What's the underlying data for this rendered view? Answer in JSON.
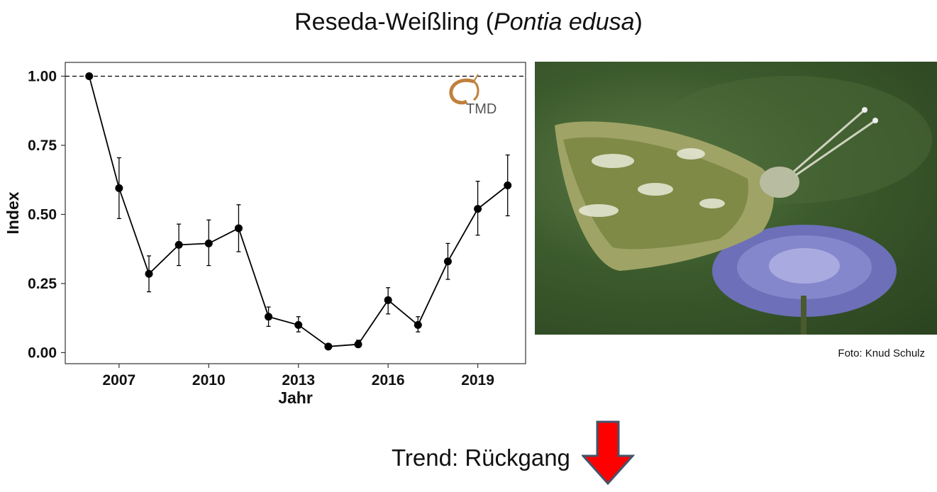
{
  "title": {
    "main": "Reseda-Weißling (",
    "italic": "Pontia edusa",
    "close": ")"
  },
  "logo": {
    "text": "TMD",
    "icon": "butterfly-logo-icon"
  },
  "photo": {
    "credit": "Foto: Knud Schulz",
    "icon": "butterfly-on-flower-image"
  },
  "trend": {
    "label": "Trend: Rückgang",
    "arrow_icon": "down-arrow-icon",
    "arrow_color": "#ff0000",
    "arrow_stroke": "#44546a"
  },
  "chart_data": {
    "type": "line",
    "xlabel": "Jahr",
    "ylabel": "Index",
    "x": [
      2006,
      2007,
      2008,
      2009,
      2010,
      2011,
      2012,
      2013,
      2014,
      2015,
      2016,
      2017,
      2018,
      2019,
      2020
    ],
    "series": [
      {
        "values": [
          1.0,
          0.595,
          0.285,
          0.39,
          0.395,
          0.45,
          0.13,
          0.1,
          0.022,
          0.03,
          0.19,
          0.1,
          0.33,
          0.52,
          0.605
        ],
        "error_low": [
          1.0,
          0.485,
          0.22,
          0.315,
          0.315,
          0.365,
          0.095,
          0.075,
          0.015,
          0.02,
          0.14,
          0.075,
          0.265,
          0.425,
          0.495
        ],
        "error_high": [
          1.0,
          0.705,
          0.35,
          0.465,
          0.48,
          0.535,
          0.165,
          0.13,
          0.03,
          0.045,
          0.235,
          0.13,
          0.395,
          0.62,
          0.715
        ]
      }
    ],
    "xticks": [
      2007,
      2010,
      2013,
      2016,
      2019
    ],
    "xtick_labels": [
      "2007",
      "2010",
      "2013",
      "2016",
      "2019"
    ],
    "yticks": [
      0,
      0.25,
      0.5,
      0.75,
      1.0
    ],
    "ytick_labels": [
      "0.00",
      "0.25",
      "0.50",
      "0.75",
      "1.00"
    ],
    "reference_line": 1.0,
    "xlim": [
      2005.2,
      2020.6
    ],
    "ylim": [
      -0.04,
      1.05
    ],
    "grid": false,
    "line_color": "#000000"
  }
}
